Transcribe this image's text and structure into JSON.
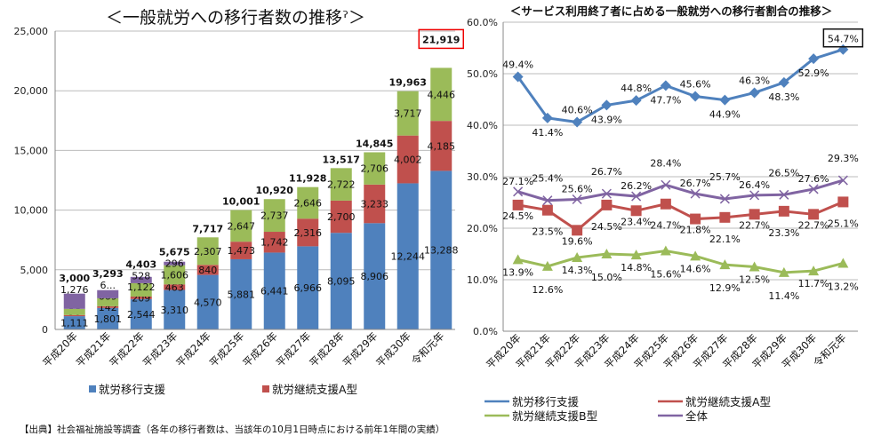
{
  "chart_data": [
    {
      "type": "bar",
      "stacked": true,
      "title": "＜一般就労への移行者数の推移ˀ＞",
      "categories": [
        "平成20年",
        "平成21年",
        "平成22年",
        "平成23年",
        "平成24年",
        "平成25年",
        "平成26年",
        "平成27年",
        "平成28年",
        "平成29年",
        "平成30年",
        "令和元年"
      ],
      "ylim": [
        0,
        25000
      ],
      "yticks": [
        "0",
        "5,000",
        "10,000",
        "15,000",
        "20,000",
        "25,000"
      ],
      "grid": true,
      "series": [
        {
          "name": "就労移行支援",
          "color": "#4f81bd",
          "values": [
            1111,
            1801,
            2544,
            3310,
            4570,
            5881,
            6441,
            6966,
            8095,
            8906,
            12244,
            13288
          ],
          "labels": [
            "1,111",
            "1,801",
            "2,544",
            "3,310",
            "4,570",
            "5,881",
            "6,441",
            "6,966",
            "8,095",
            "8,906",
            "12,244",
            "13,288"
          ]
        },
        {
          "name": "就労継続支援A型",
          "color": "#c0504d",
          "values": [
            96,
            142,
            209,
            463,
            840,
            1473,
            1742,
            2316,
            2700,
            3233,
            4002,
            4185
          ],
          "labels": [
            "96",
            "142",
            "209",
            "463",
            "840",
            "1,473",
            "1,742",
            "2,316",
            "2,700",
            "3,233",
            "4,002",
            "4,185"
          ]
        },
        {
          "color": "#9bbb59",
          "values": [
            517,
            669,
            1122,
            1606,
            2307,
            2647,
            2737,
            2646,
            2722,
            2706,
            3717,
            4446
          ],
          "labels": [
            "517",
            "669",
            "1,122",
            "1,606",
            "2,307",
            "2,647",
            "2,737",
            "2,646",
            "2,722",
            "2,706",
            "3,717",
            "4,446"
          ]
        },
        {
          "color": "#8064a2",
          "values": [
            1276,
            681,
            528,
            296,
            0,
            0,
            0,
            0,
            0,
            0,
            0,
            0
          ],
          "labels": [
            "1,276",
            "6...",
            "528",
            "296",
            "",
            "",
            "",
            "",
            "",
            "",
            "",
            ""
          ]
        }
      ],
      "totals": [
        "3,000",
        "3,293",
        "4,403",
        "5,675",
        "7,717",
        "10,001",
        "10,920",
        "11,928",
        "13,517",
        "14,845",
        "19,963",
        "21,919"
      ],
      "highlight_total": "21,919",
      "legend": [
        {
          "name": "就労移行支援",
          "color": "#4f81bd"
        },
        {
          "name": "就労継続支援A型",
          "color": "#c0504d"
        }
      ],
      "legend_placement": "bottom"
    },
    {
      "type": "line",
      "title": "＜サービス利用終了者に占める一般就労への移行者割合の推移＞",
      "categories": [
        "平成20年",
        "平成21年",
        "平成22年",
        "平成23年",
        "平成24年",
        "平成25年",
        "平成26年",
        "平成27年",
        "平成28年",
        "平成29年",
        "平成30年",
        "令和元年"
      ],
      "ylim": [
        0,
        60
      ],
      "yticks": [
        "0.0%",
        "10.0%",
        "20.0%",
        "30.0%",
        "40.0%",
        "50.0%",
        "60.0%"
      ],
      "grid": true,
      "series": [
        {
          "name": "就労移行支援",
          "color": "#4f81bd",
          "marker": "diamond",
          "values": [
            49.4,
            41.4,
            40.6,
            43.9,
            44.8,
            47.7,
            45.6,
            44.9,
            46.3,
            48.3,
            52.9,
            54.7
          ]
        },
        {
          "name": "就労継続支援A型",
          "color": "#c0504d",
          "marker": "square",
          "values": [
            24.5,
            23.5,
            19.6,
            24.5,
            23.4,
            24.7,
            21.8,
            22.1,
            22.7,
            23.3,
            22.7,
            25.1
          ]
        },
        {
          "name": "就労継続支援B型",
          "color": "#9bbb59",
          "marker": "triangle",
          "values": [
            13.9,
            12.6,
            14.3,
            15.0,
            14.8,
            15.6,
            14.6,
            12.9,
            12.5,
            11.4,
            11.7,
            13.2
          ]
        },
        {
          "name": "全体",
          "color": "#8064a2",
          "marker": "x",
          "values": [
            27.1,
            25.4,
            25.6,
            26.7,
            26.2,
            28.4,
            26.7,
            25.7,
            26.4,
            26.5,
            27.6,
            29.3
          ]
        }
      ],
      "highlight_label": "54.7%",
      "legend_placement": "bottom"
    }
  ],
  "source_note": "【出典】社会福祉施設等調査（各年の移行者数は、当該年の10月1日時点における前年1年間の実績）"
}
